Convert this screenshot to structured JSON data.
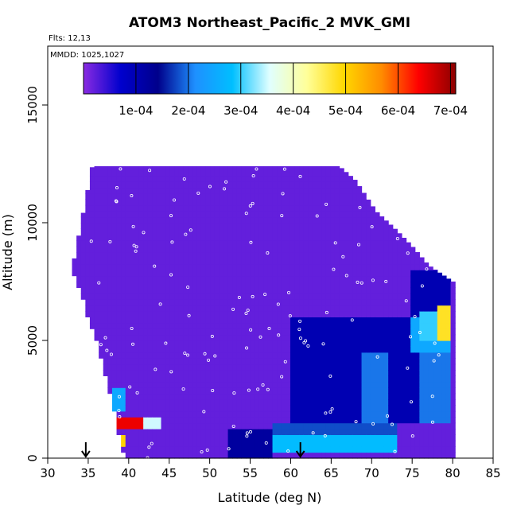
{
  "chart_data": {
    "type": "heatmap",
    "title": "ATOM3 Northeast_Pacific_2 MVK_GMI",
    "annotations": [
      "Flts: 12,13",
      "MMDD: 1025,1027"
    ],
    "xlabel": "Latitude (deg N)",
    "ylabel": "Altitude (m)",
    "xlim": [
      30,
      85
    ],
    "ylim": [
      0,
      17500
    ],
    "x_ticks": [
      "30",
      "35",
      "40",
      "45",
      "50",
      "55",
      "60",
      "65",
      "70",
      "75",
      "80",
      "85"
    ],
    "y_ticks": [
      "0",
      "5000",
      "10000",
      "15000"
    ],
    "colorbar": {
      "range": [
        0,
        0.00071
      ],
      "tick_values": [
        0.0001,
        0.0002,
        0.0003,
        0.0004,
        0.0005,
        0.0006,
        0.0007
      ],
      "tick_labels": [
        "1e-04",
        "2e-04",
        "3e-04",
        "4e-04",
        "5e-04",
        "6e-04",
        "7e-04"
      ],
      "colors": [
        "#8a2be2",
        "#0000cd",
        "#00008b",
        "#1e90ff",
        "#00bfff",
        "#e0ffff",
        "#ffff99",
        "#ffd700",
        "#ff8c00",
        "#ff0000",
        "#8b0000"
      ]
    },
    "markers": [
      {
        "x": 34.7,
        "label": "arrow"
      },
      {
        "x": 61.2,
        "label": "arrow"
      }
    ],
    "curtain_top": [
      {
        "lat": 33.0,
        "alt": 8000
      },
      {
        "lat": 35.5,
        "alt": 12400
      },
      {
        "lat": 66.0,
        "alt": 12400
      },
      {
        "lat": 68.0,
        "alt": 11800
      },
      {
        "lat": 70.5,
        "alt": 10500
      },
      {
        "lat": 73.0,
        "alt": 9700
      },
      {
        "lat": 75.0,
        "alt": 9000
      },
      {
        "lat": 77.0,
        "alt": 8200
      },
      {
        "lat": 80.0,
        "alt": 7500
      }
    ],
    "curtain_left": [
      {
        "lat": 33.0,
        "alt": 8000
      },
      {
        "lat": 34.0,
        "alt": 7000
      },
      {
        "lat": 36.0,
        "alt": 5000
      },
      {
        "lat": 37.5,
        "alt": 3000
      },
      {
        "lat": 38.5,
        "alt": 1500
      },
      {
        "lat": 39.5,
        "alt": 0
      }
    ],
    "features": [
      {
        "lat": [
          38.0,
          42.0
        ],
        "alt": [
          1200,
          1800
        ],
        "value": 0.00065
      },
      {
        "lat": [
          41.0,
          44.0
        ],
        "alt": [
          1200,
          1800
        ],
        "value": 0.00035
      },
      {
        "lat": [
          38.0,
          39.5
        ],
        "alt": [
          2000,
          3000
        ],
        "value": 0.00025
      },
      {
        "lat": [
          38.0,
          39.5
        ],
        "alt": [
          400,
          1000
        ],
        "value": 0.0005
      },
      {
        "lat": [
          52.0,
          58.0
        ],
        "alt": [
          0,
          1200
        ],
        "value": 0.00012
      },
      {
        "lat": [
          58.0,
          73.0
        ],
        "alt": [
          300,
          1000
        ],
        "value": 0.00028
      },
      {
        "lat": [
          58.0,
          73.0
        ],
        "alt": [
          1000,
          1500
        ],
        "value": 0.00018
      },
      {
        "lat": [
          60.0,
          77.0
        ],
        "alt": [
          1500,
          6000
        ],
        "value": 0.0001
      },
      {
        "lat": [
          69.0,
          72.0
        ],
        "alt": [
          1500,
          4500
        ],
        "value": 0.0002
      },
      {
        "lat": [
          76.0,
          80.0
        ],
        "alt": [
          1500,
          4500
        ],
        "value": 0.0002
      },
      {
        "lat": [
          75.0,
          80.0
        ],
        "alt": [
          4500,
          6000
        ],
        "value": 0.00025
      },
      {
        "lat": [
          76.0,
          80.0
        ],
        "alt": [
          5000,
          6200
        ],
        "value": 0.0003
      },
      {
        "lat": [
          78.0,
          80.0
        ],
        "alt": [
          5000,
          6500
        ],
        "value": 0.00048
      },
      {
        "lat": [
          75.0,
          80.0
        ],
        "alt": [
          6000,
          8000
        ],
        "value": 0.0001
      }
    ]
  }
}
